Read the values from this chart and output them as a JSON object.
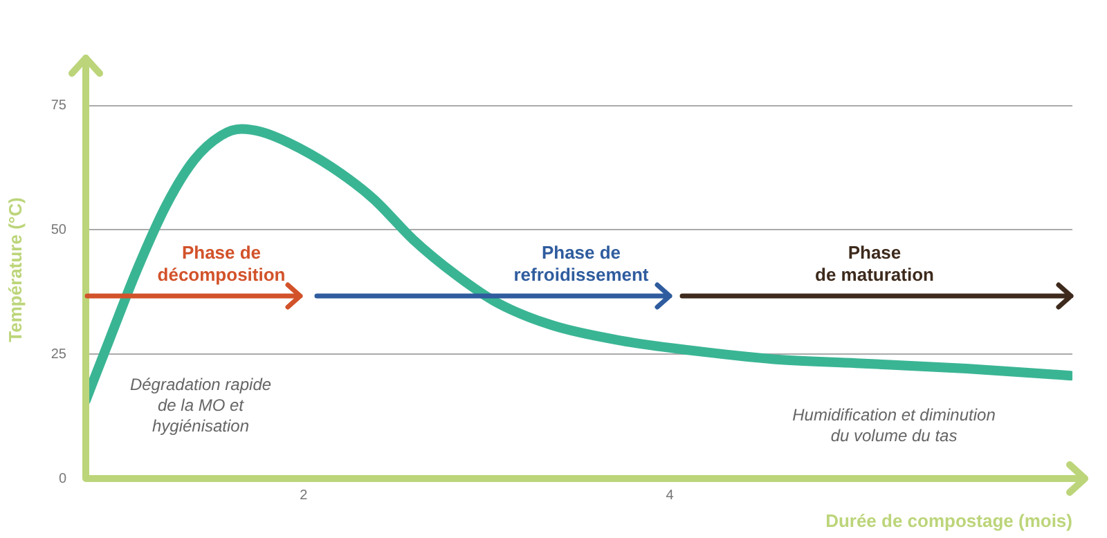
{
  "chart_data": {
    "type": "line",
    "xlabel": "Durée de compostage (mois)",
    "ylabel": "Température (°C)",
    "x": [
      0.81,
      0.94,
      1.09,
      1.25,
      1.4,
      1.55,
      1.66,
      1.77,
      1.92,
      2.15,
      2.38,
      2.6,
      2.83,
      3.06,
      3.36,
      3.74,
      4.11,
      4.57,
      5.02,
      5.62,
      6.19
    ],
    "series": [
      {
        "color": "#3ab594",
        "values": [
          15.7,
          28,
          42,
          55,
          64,
          69,
          70.3,
          69.7,
          67.5,
          62.7,
          56.3,
          48,
          41,
          35.3,
          30.8,
          27.7,
          25.8,
          24,
          23.2,
          22.1,
          20.7
        ]
      }
    ],
    "xlim": [
      0.81,
      6.2
    ],
    "xticks": [
      2,
      4
    ],
    "ylim": [
      0,
      84
    ],
    "yticks": [
      0,
      25,
      50,
      75
    ],
    "grid": "y",
    "marker": "none",
    "line_style": "solid",
    "legend": false,
    "annotations": [
      "Phase de\ndécomposition",
      "Phase de\nrefroidissement",
      "Phase\nde maturation",
      "Dégradation rapide\nde la MO et\nhygiénisation",
      "Humidification et diminution\ndu volume du tas"
    ]
  }
}
